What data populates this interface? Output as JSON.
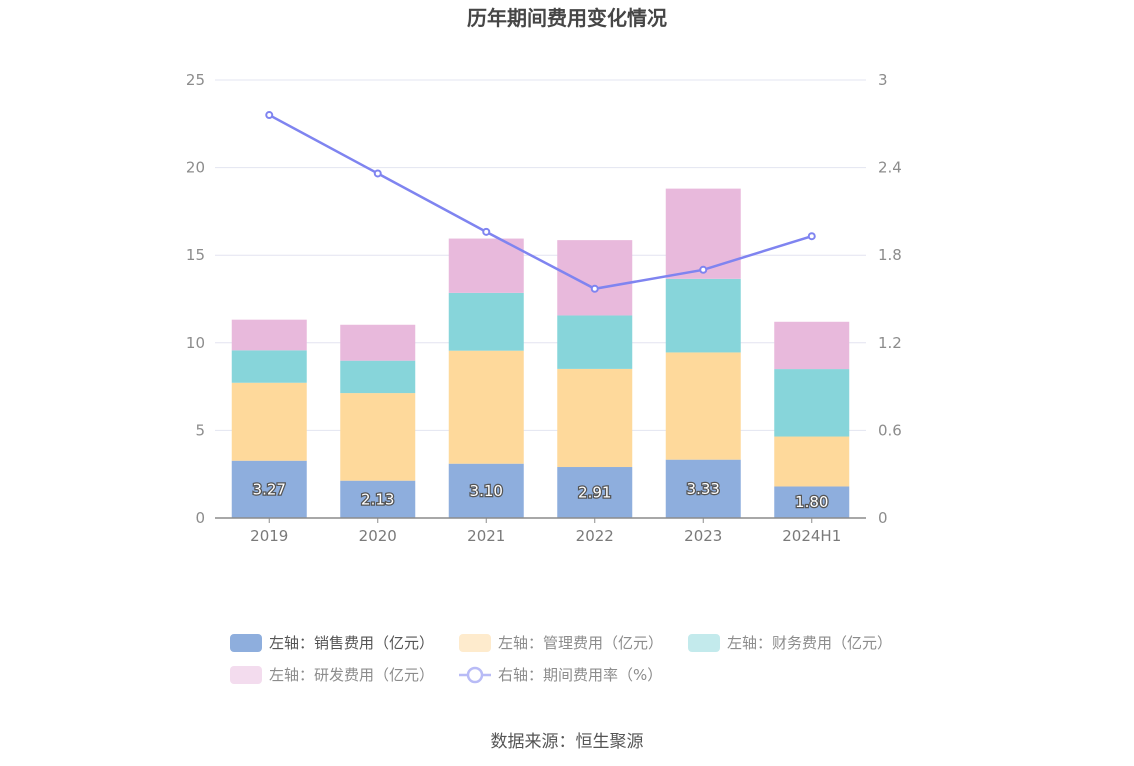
{
  "chart_data": {
    "type": "bar",
    "title": "历年期间费用变化情况",
    "categories": [
      "2019",
      "2020",
      "2021",
      "2022",
      "2023",
      "2024H1"
    ],
    "series": [
      {
        "name": "左轴：销售费用（亿元）",
        "axis": "left",
        "color": "#8eaedd",
        "values": [
          3.27,
          2.13,
          3.1,
          2.91,
          3.33,
          1.8
        ],
        "labels": [
          "3.27",
          "2.13",
          "3.10",
          "2.91",
          "3.33",
          "1.80"
        ]
      },
      {
        "name": "左轴：管理费用（亿元）",
        "axis": "left",
        "color": "#fed99b",
        "values": [
          4.45,
          5.0,
          6.45,
          5.6,
          6.12,
          2.85
        ]
      },
      {
        "name": "左轴：财务费用（亿元）",
        "axis": "left",
        "color": "#87d5da",
        "values": [
          1.85,
          1.85,
          3.3,
          3.05,
          4.2,
          3.85
        ]
      },
      {
        "name": "左轴：研发费用（亿元）",
        "axis": "left",
        "color": "#e8b9dc",
        "values": [
          1.75,
          2.05,
          3.1,
          4.3,
          5.15,
          2.7
        ]
      },
      {
        "name": "右轴：期间费用率（%）",
        "axis": "right",
        "type": "line",
        "color": "#7f84f0",
        "values": [
          2.76,
          2.36,
          1.96,
          1.57,
          1.7,
          1.93
        ]
      }
    ],
    "left_axis": {
      "ylim": [
        0,
        25
      ],
      "ticks": [
        "0",
        "5",
        "10",
        "15",
        "20",
        "25"
      ]
    },
    "right_axis": {
      "ylim": [
        0,
        3
      ],
      "ticks": [
        "0",
        "0.6",
        "1.2",
        "1.8",
        "2.4",
        "3"
      ]
    },
    "grid": true,
    "legend_position": "bottom"
  },
  "source": "数据来源：恒生聚源"
}
